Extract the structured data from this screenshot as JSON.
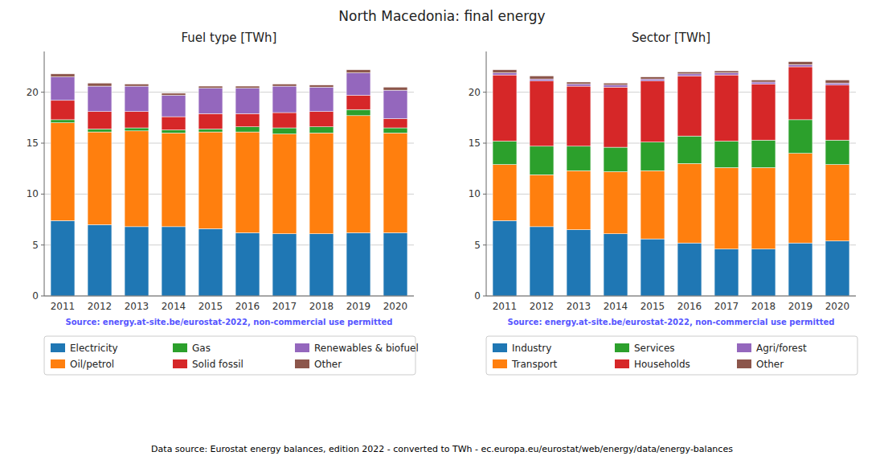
{
  "title": "North Macedonia: final energy",
  "footer": "Data source: Eurostat energy balances, edition 2022 - converted to TWh - ec.europa.eu/eurostat/web/energy/data/energy-balances",
  "chart_data": [
    {
      "type": "bar",
      "stacked": true,
      "title": "Fuel type [TWh]",
      "categories": [
        "2011",
        "2012",
        "2013",
        "2014",
        "2015",
        "2016",
        "2017",
        "2018",
        "2019",
        "2020"
      ],
      "series": [
        {
          "name": "Electricity",
          "color": "#1f77b4",
          "values": [
            7.4,
            7.0,
            6.8,
            6.8,
            6.6,
            6.2,
            6.1,
            6.1,
            6.2,
            6.2
          ]
        },
        {
          "name": "Oil/petrol",
          "color": "#ff7f0e",
          "values": [
            9.6,
            9.1,
            9.4,
            9.2,
            9.5,
            9.9,
            9.8,
            9.9,
            11.5,
            9.8
          ]
        },
        {
          "name": "Gas",
          "color": "#2ca02c",
          "values": [
            0.3,
            0.3,
            0.3,
            0.3,
            0.3,
            0.5,
            0.6,
            0.6,
            0.6,
            0.5
          ]
        },
        {
          "name": "Solid fossil",
          "color": "#d62728",
          "values": [
            1.9,
            1.7,
            1.6,
            1.3,
            1.5,
            1.3,
            1.5,
            1.5,
            1.4,
            0.9
          ]
        },
        {
          "name": "Renewables & biofuel",
          "color": "#9467bd",
          "values": [
            2.3,
            2.5,
            2.5,
            2.1,
            2.5,
            2.5,
            2.6,
            2.4,
            2.2,
            2.8
          ]
        },
        {
          "name": "Other",
          "color": "#8c564b",
          "values": [
            0.3,
            0.3,
            0.2,
            0.2,
            0.2,
            0.2,
            0.2,
            0.2,
            0.3,
            0.3
          ]
        }
      ],
      "annotations": [
        "Source: energy.at-site.be/eurostat-2022, non-commercial use permitted"
      ],
      "ylim": [
        0,
        24
      ],
      "yticks": [
        0,
        5,
        10,
        15,
        20
      ],
      "grid": true,
      "legend": "bottom"
    },
    {
      "type": "bar",
      "stacked": true,
      "title": "Sector [TWh]",
      "categories": [
        "2011",
        "2012",
        "2013",
        "2014",
        "2015",
        "2016",
        "2017",
        "2018",
        "2019",
        "2020"
      ],
      "series": [
        {
          "name": "Industry",
          "color": "#1f77b4",
          "values": [
            7.4,
            6.8,
            6.5,
            6.1,
            5.6,
            5.2,
            4.6,
            4.6,
            5.2,
            5.4
          ]
        },
        {
          "name": "Transport",
          "color": "#ff7f0e",
          "values": [
            5.5,
            5.1,
            5.8,
            6.1,
            6.7,
            7.8,
            8.0,
            8.0,
            8.8,
            7.5
          ]
        },
        {
          "name": "Services",
          "color": "#2ca02c",
          "values": [
            2.3,
            2.8,
            2.4,
            2.4,
            2.8,
            2.7,
            2.6,
            2.7,
            3.3,
            2.4
          ]
        },
        {
          "name": "Households",
          "color": "#d62728",
          "values": [
            6.5,
            6.4,
            5.9,
            5.9,
            6.0,
            5.9,
            6.5,
            5.5,
            5.2,
            5.4
          ]
        },
        {
          "name": "Agri/forest",
          "color": "#9467bd",
          "values": [
            0.2,
            0.2,
            0.2,
            0.2,
            0.2,
            0.2,
            0.2,
            0.2,
            0.2,
            0.2
          ]
        },
        {
          "name": "Other",
          "color": "#8c564b",
          "values": [
            0.3,
            0.3,
            0.2,
            0.2,
            0.2,
            0.2,
            0.2,
            0.2,
            0.3,
            0.3
          ]
        }
      ],
      "annotations": [
        "Source: energy.at-site.be/eurostat-2022, non-commercial use permitted"
      ],
      "ylim": [
        0,
        24
      ],
      "yticks": [
        0,
        5,
        10,
        15,
        20
      ],
      "grid": true,
      "legend": "bottom"
    }
  ]
}
